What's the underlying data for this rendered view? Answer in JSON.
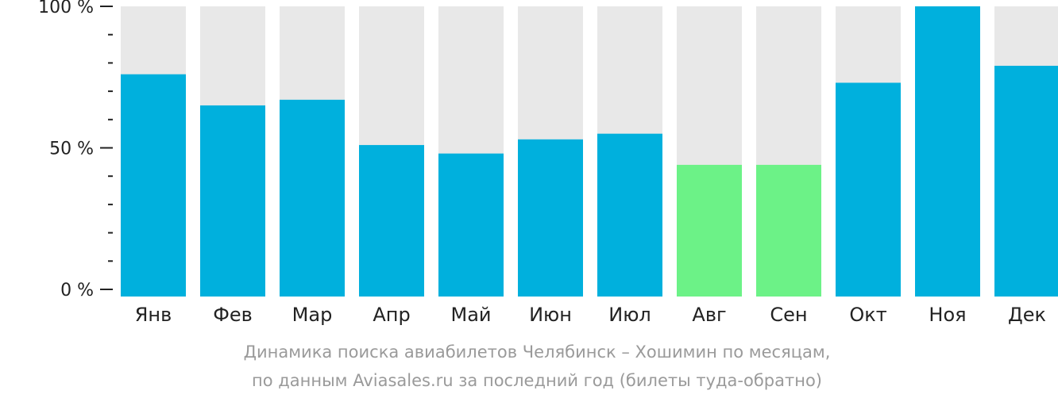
{
  "chart_data": {
    "type": "bar",
    "categories": [
      "Янв",
      "Фев",
      "Мар",
      "Апр",
      "Май",
      "Июн",
      "Июл",
      "Авг",
      "Сен",
      "Окт",
      "Ноя",
      "Дек"
    ],
    "values": [
      76,
      65,
      67,
      51,
      48,
      53,
      55,
      44,
      44,
      73,
      100,
      79
    ],
    "ylim": [
      0,
      100
    ],
    "y_ticks": [
      {
        "value": 0,
        "label": "0 %"
      },
      {
        "value": 50,
        "label": "50 %"
      },
      {
        "value": 100,
        "label": "100 %"
      }
    ],
    "minor_tick_step": 10,
    "title_line1": "Динамика поиска авиабилетов Челябинск – Хошимин по месяцам,",
    "title_line2": "по данным Aviasales.ru за последний год (билеты туда-обратно)",
    "highlight_categories": [
      "Авг",
      "Сен"
    ],
    "colors": {
      "bar": "#00b0dd",
      "highlight": "#6cf287",
      "background": "#e8e8e8",
      "axis": "#222222"
    },
    "grid": false,
    "legend": "none"
  }
}
